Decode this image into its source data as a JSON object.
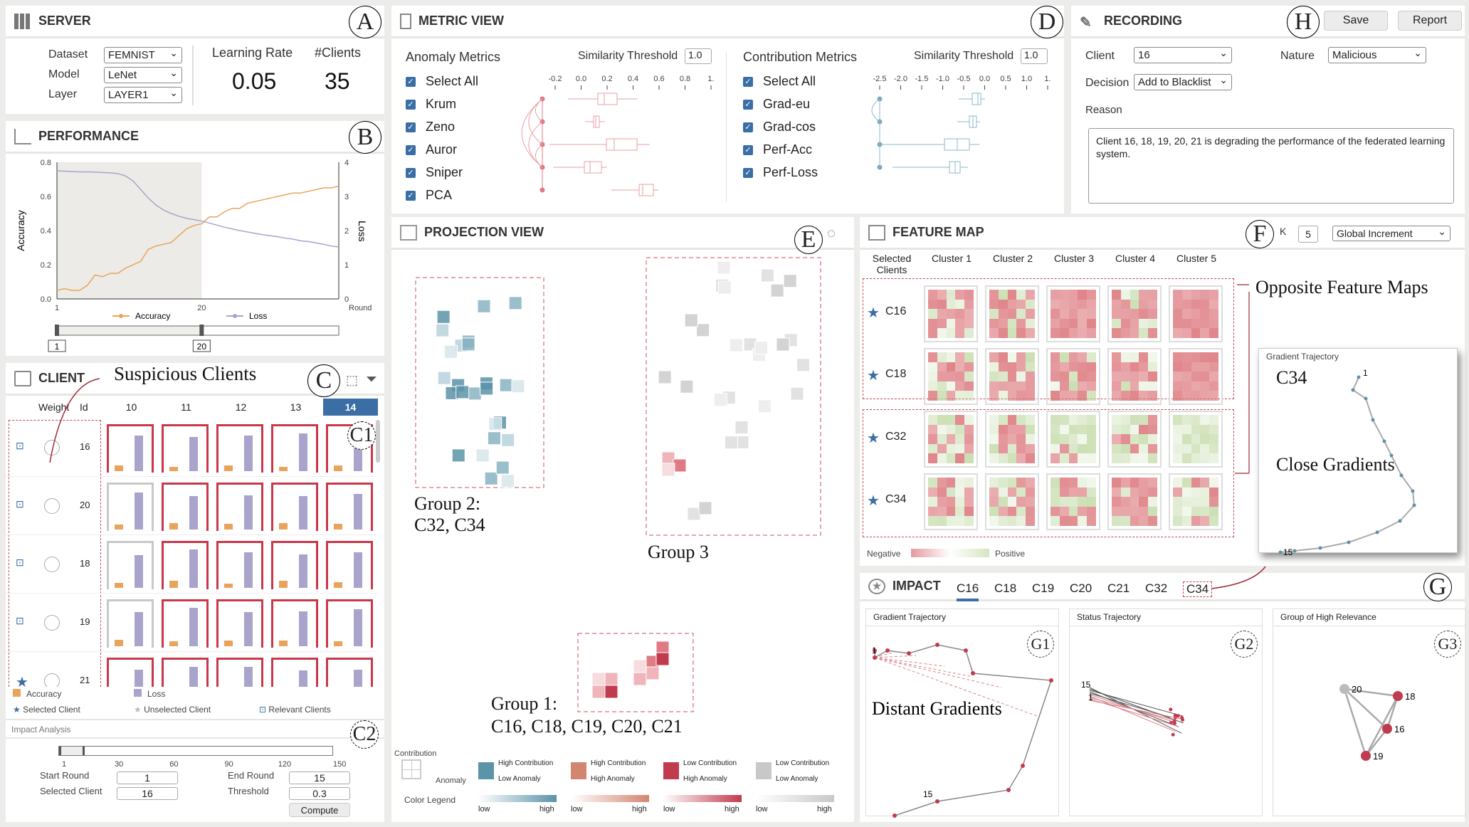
{
  "server": {
    "title": "SERVER",
    "marker": "A",
    "dataset_label": "Dataset",
    "dataset": "FEMNIST",
    "model_label": "Model",
    "model": "LeNet",
    "layer_label": "Layer",
    "layer": "LAYER1",
    "lr_label": "Learning Rate",
    "lr": "0.05",
    "clients_label": "#Clients",
    "clients": "35"
  },
  "performance": {
    "title": "PERFORMANCE",
    "marker": "B",
    "y_label": "Accuracy",
    "y2_label": "Loss",
    "x_label": "Round",
    "y_ticks": [
      "0.0",
      "0.2",
      "0.4",
      "0.6",
      "0.8"
    ],
    "y2_ticks": [
      "0",
      "1",
      "2",
      "3",
      "4"
    ],
    "x_ticks": [
      "1",
      "20"
    ],
    "legend": [
      "Accuracy",
      "Loss"
    ],
    "range_start": "1",
    "range_end": "20",
    "accuracy": [
      0.05,
      0.06,
      0.05,
      0.05,
      0.08,
      0.14,
      0.13,
      0.15,
      0.15,
      0.18,
      0.2,
      0.22,
      0.29,
      0.31,
      0.32,
      0.33,
      0.37,
      0.41,
      0.43,
      0.44,
      0.48,
      0.48,
      0.51,
      0.53,
      0.53,
      0.56,
      0.57,
      0.58,
      0.59,
      0.6,
      0.61,
      0.62,
      0.62,
      0.63,
      0.64,
      0.65,
      0.65,
      0.66
    ],
    "loss": [
      3.75,
      3.74,
      3.73,
      3.72,
      3.72,
      3.71,
      3.7,
      3.69,
      3.67,
      3.6,
      3.45,
      3.2,
      2.95,
      2.75,
      2.6,
      2.5,
      2.42,
      2.36,
      2.32,
      2.28,
      2.22,
      2.16,
      2.1,
      2.05,
      2.0,
      1.96,
      1.92,
      1.88,
      1.85,
      1.82,
      1.78,
      1.75,
      1.7,
      1.68,
      1.64,
      1.6,
      1.55,
      1.52
    ],
    "colors": {
      "accuracy": "#e9a45c",
      "loss": "#a8a4cc"
    }
  },
  "client": {
    "title": "CLIENT",
    "marker": "C",
    "sub_marker1": "C1",
    "sub_marker2": "C2",
    "annotation": "Suspicious Clients",
    "col_weight": "Weight",
    "col_id": "Id",
    "rounds": [
      "10",
      "11",
      "12",
      "13",
      "14"
    ],
    "selected_round": "14",
    "rows": [
      {
        "id": "16",
        "selected": false,
        "borders": [
          "r",
          "r",
          "r",
          "r",
          "r"
        ]
      },
      {
        "id": "20",
        "selected": false,
        "borders": [
          "g",
          "r",
          "r",
          "r",
          "r"
        ]
      },
      {
        "id": "18",
        "selected": false,
        "borders": [
          "g",
          "r",
          "r",
          "r",
          "r"
        ]
      },
      {
        "id": "19",
        "selected": false,
        "borders": [
          "g",
          "r",
          "r",
          "r",
          "r"
        ]
      },
      {
        "id": "21",
        "selected": true,
        "borders": [
          "r",
          "r",
          "r",
          "r",
          "r"
        ]
      }
    ],
    "legend": {
      "accuracy": "Accuracy",
      "loss": "Loss",
      "selected": "Selected Client",
      "unselected": "Unselected Client",
      "relevant": "Relevant Clients"
    },
    "impact_title": "Impact Analysis",
    "slider_ticks": [
      "1",
      "30",
      "60",
      "90",
      "120",
      "150"
    ],
    "start_round_label": "Start Round",
    "start_round": "1",
    "end_round_label": "End Round",
    "end_round": "15",
    "selected_client_label": "Selected Client",
    "selected_client": "16",
    "threshold_label": "Threshold",
    "threshold": "0.3",
    "compute": "Compute"
  },
  "metric": {
    "title": "METRIC VIEW",
    "marker": "D",
    "anomaly_title": "Anomaly Metrics",
    "threshold_label": "Similarity Threshold",
    "anomaly_threshold": "1.0",
    "anomaly_ticks": [
      "-0.2",
      "0.0",
      "0.2",
      "0.4",
      "0.6",
      "0.8",
      "1."
    ],
    "anomaly_items": [
      "Select All",
      "Krum",
      "Zeno",
      "Auror",
      "Sniper",
      "PCA"
    ],
    "contribution_title": "Contribution Metrics",
    "contribution_threshold": "1.0",
    "contribution_ticks": [
      "-2.5",
      "-2.0",
      "-1.5",
      "-1.0",
      "-0.5",
      "0.0",
      "0.5",
      "1.0",
      "1."
    ],
    "contribution_items": [
      "Select All",
      "Grad-eu",
      "Grad-cos",
      "Perf-Acc",
      "Perf-Loss"
    ]
  },
  "recording": {
    "title": "RECORDING",
    "marker": "H",
    "save": "Save",
    "report": "Report",
    "client_label": "Client",
    "client": "16",
    "nature_label": "Nature",
    "nature": "Malicious",
    "decision_label": "Decision",
    "decision": "Add to Blacklist",
    "reason_label": "Reason",
    "reason": "Client 16, 18, 19, 20, 21 is degrading the performance of the federated learning system."
  },
  "projection": {
    "title": "PROJECTION VIEW",
    "marker": "E",
    "group1": "Group 1:",
    "group1_members": "C16, C18, C19, C20, C21",
    "group2": "Group 2:",
    "group2_members": "C32, C34",
    "group3": "Group 3",
    "legend": {
      "axis_y": "Contribution",
      "axis_x": "Anomaly",
      "items": [
        [
          "High Contribution",
          "Low Anomaly"
        ],
        [
          "High Contribution",
          "High Anomaly"
        ],
        [
          "Low Contribution",
          "High Anomaly"
        ],
        [
          "Low Contribution",
          "Low Anomaly"
        ]
      ],
      "color_legend": "Color Legend",
      "low": "low",
      "high": "high",
      "colors": [
        "#5b93a8",
        "#d28670",
        "#c23a4e",
        "#c8c8c8"
      ]
    }
  },
  "feature_map": {
    "title": "FEATURE MAP",
    "marker": "F",
    "k_label": "K",
    "k": "5",
    "mode": "Global Increment",
    "col_clients": "Selected Clients",
    "clusters": [
      "Cluster 1",
      "Cluster 2",
      "Cluster 3",
      "Cluster 4",
      "Cluster 5"
    ],
    "rows": [
      "C16",
      "C18",
      "C32",
      "C34"
    ],
    "annotation": "Opposite Feature Maps",
    "negative": "Negative",
    "positive": "Positive",
    "popup": {
      "title": "Gradient Trajectory",
      "client": "C34",
      "start": "1",
      "end": "15",
      "annotation": "Close Gradients"
    }
  },
  "impact": {
    "title": "IMPACT",
    "marker": "G",
    "tabs": [
      "C16",
      "C18",
      "C19",
      "C20",
      "C21",
      "C32",
      "C34"
    ],
    "active_tab": "C16",
    "panels": [
      {
        "title": "Gradient Trajectory",
        "marker": "G1",
        "start": "1",
        "end": "15",
        "annotation": "Distant Gradients"
      },
      {
        "title": "Status Trajectory",
        "marker": "G2",
        "start": "15",
        "end": "1"
      },
      {
        "title": "Group of High Relevance",
        "marker": "G3",
        "nodes": [
          "20",
          "18",
          "16",
          "19"
        ]
      }
    ]
  }
}
